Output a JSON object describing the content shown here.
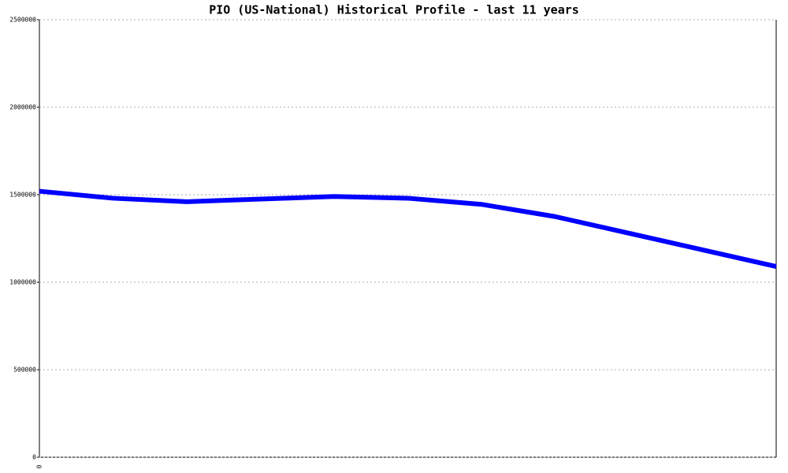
{
  "chart_data": {
    "type": "line",
    "title": "PIO (US-National) Historical Profile - last 11 years",
    "categories": [
      "0",
      null,
      null,
      null,
      null,
      null,
      null,
      null,
      null,
      null,
      null
    ],
    "series": [
      {
        "color": "#0000ff",
        "values": [
          1520000,
          1480000,
          1460000,
          1475000,
          1490000,
          1480000,
          1445000,
          1375000,
          1280000,
          1185000,
          1090000
        ]
      }
    ],
    "ylim": [
      0,
      2500000
    ],
    "yticks": [
      0,
      500000,
      1000000,
      1500000,
      2000000,
      2500000
    ],
    "grid": true
  }
}
